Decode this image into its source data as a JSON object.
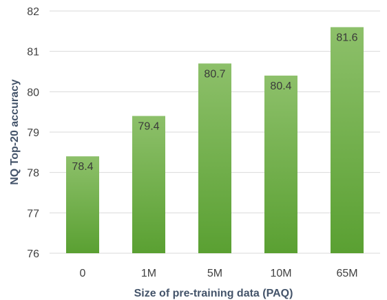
{
  "chart_data": {
    "type": "bar",
    "categories": [
      "0",
      "1M",
      "5M",
      "10M",
      "65M"
    ],
    "values": [
      78.4,
      79.4,
      80.7,
      80.4,
      81.6
    ],
    "data_labels": [
      "78.4",
      "79.4",
      "80.7",
      "80.4",
      "81.6"
    ],
    "title": "",
    "xlabel": "Size of pre-training data (PAQ)",
    "ylabel": "NQ Top-20 accuracy",
    "ylim": [
      76,
      82
    ],
    "yticks": [
      "76",
      "77",
      "78",
      "79",
      "80",
      "81",
      "82"
    ],
    "grid": true,
    "legend": "none",
    "colors": {
      "bar_top": "#8dc06a",
      "bar_bottom": "#5aa032",
      "grid": "#d9d9d9"
    }
  }
}
